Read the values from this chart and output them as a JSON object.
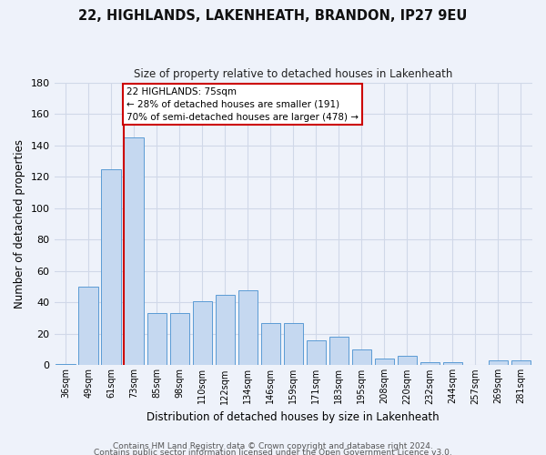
{
  "title": "22, HIGHLANDS, LAKENHEATH, BRANDON, IP27 9EU",
  "subtitle": "Size of property relative to detached houses in Lakenheath",
  "xlabel": "Distribution of detached houses by size in Lakenheath",
  "ylabel": "Number of detached properties",
  "categories": [
    "36sqm",
    "49sqm",
    "61sqm",
    "73sqm",
    "85sqm",
    "98sqm",
    "110sqm",
    "122sqm",
    "134sqm",
    "146sqm",
    "159sqm",
    "171sqm",
    "183sqm",
    "195sqm",
    "208sqm",
    "220sqm",
    "232sqm",
    "244sqm",
    "257sqm",
    "269sqm",
    "281sqm"
  ],
  "values": [
    1,
    50,
    125,
    145,
    33,
    33,
    41,
    45,
    48,
    27,
    27,
    16,
    18,
    10,
    4,
    6,
    2,
    2,
    0,
    3,
    3
  ],
  "bar_color": "#c5d8f0",
  "bar_edge_color": "#5b9bd5",
  "vline_index": 3,
  "annotation_line1": "22 HIGHLANDS: 75sqm",
  "annotation_line2": "← 28% of detached houses are smaller (191)",
  "annotation_line3": "70% of semi-detached houses are larger (478) →",
  "annotation_box_facecolor": "#ffffff",
  "annotation_box_edgecolor": "#cc0000",
  "vline_color": "#cc0000",
  "ylim": [
    0,
    180
  ],
  "yticks": [
    0,
    20,
    40,
    60,
    80,
    100,
    120,
    140,
    160,
    180
  ],
  "grid_color": "#d0d8e8",
  "background_color": "#eef2fa",
  "footnote1": "Contains HM Land Registry data © Crown copyright and database right 2024.",
  "footnote2": "Contains public sector information licensed under the Open Government Licence v3.0."
}
